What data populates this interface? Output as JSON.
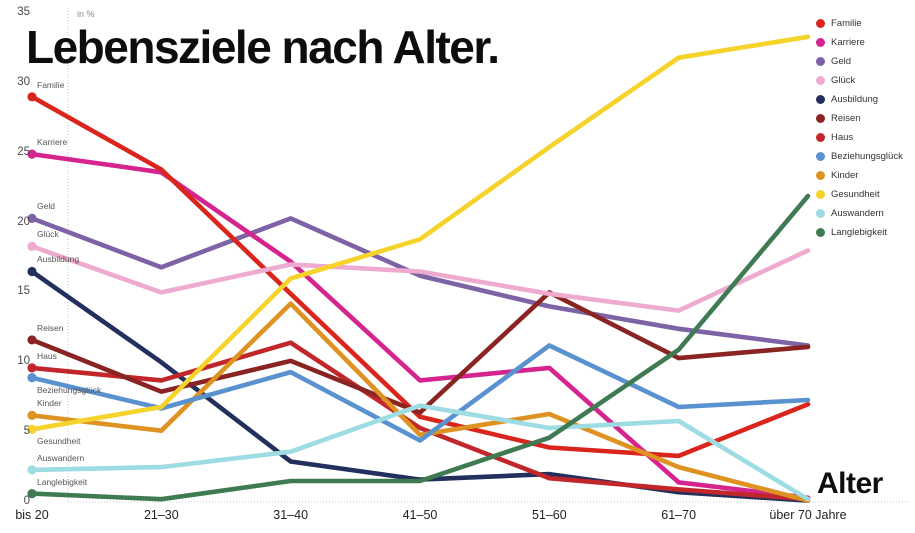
{
  "title": "Lebensziele nach Alter.",
  "y_axis_unit_label": "in %",
  "x_axis_title": "Alter",
  "chart_data": {
    "type": "line",
    "title": "Lebensziele nach Alter.",
    "xlabel": "Alter",
    "ylabel": "in %",
    "ylim": [
      0,
      35
    ],
    "yticks": [
      0,
      5,
      10,
      15,
      20,
      25,
      30,
      35
    ],
    "grid": false,
    "legend_position": "top-right",
    "start_point_dots": true,
    "categories": [
      "bis 20",
      "21–30",
      "31–40",
      "41–50",
      "51–60",
      "61–70",
      "über 70 Jahre"
    ],
    "series": [
      {
        "name": "Familie",
        "color": "#da251d",
        "values": [
          29.0,
          23.8,
          14.9,
          6.1,
          3.9,
          3.3,
          7.0
        ]
      },
      {
        "name": "Karriere",
        "color": "#d6248f",
        "values": [
          24.9,
          23.6,
          17.2,
          8.7,
          9.6,
          1.4,
          0.3
        ]
      },
      {
        "name": "Geld",
        "color": "#7d63a5",
        "values": [
          20.3,
          16.8,
          20.3,
          16.2,
          14.0,
          12.4,
          11.2
        ]
      },
      {
        "name": "Glück",
        "color": "#eeabcf",
        "values": [
          18.3,
          15.0,
          17.0,
          16.5,
          14.9,
          13.7,
          18.0
        ]
      },
      {
        "name": "Ausbildung",
        "color": "#232f5c",
        "values": [
          16.5,
          10.0,
          2.9,
          1.6,
          2.0,
          0.7,
          0.1
        ]
      },
      {
        "name": "Reisen",
        "color": "#8a2422",
        "values": [
          11.6,
          7.9,
          10.1,
          6.4,
          15.0,
          10.3,
          11.1
        ]
      },
      {
        "name": "Haus",
        "color": "#c1272a",
        "values": [
          9.6,
          8.7,
          11.4,
          5.3,
          1.7,
          0.9,
          0.2
        ]
      },
      {
        "name": "Beziehungsglück",
        "color": "#5a92d0",
        "values": [
          8.9,
          6.7,
          9.3,
          4.4,
          11.2,
          6.8,
          7.3
        ]
      },
      {
        "name": "Kinder",
        "color": "#dd9221",
        "values": [
          6.2,
          5.1,
          14.2,
          4.8,
          6.3,
          2.5,
          0.1
        ]
      },
      {
        "name": "Gesundheit",
        "color": "#f6d32b",
        "values": [
          5.2,
          6.8,
          16.0,
          18.8,
          25.4,
          31.8,
          33.3
        ]
      },
      {
        "name": "Auswandern",
        "color": "#9cdce2",
        "values": [
          2.3,
          2.5,
          3.6,
          6.9,
          5.3,
          5.8,
          0.2
        ]
      },
      {
        "name": "Langlebigkeit",
        "color": "#3f7a52",
        "values": [
          0.6,
          0.2,
          1.5,
          1.5,
          4.6,
          10.9,
          21.9
        ]
      }
    ],
    "draw_order": [
      "Ausbildung",
      "Geld",
      "Karriere",
      "Familie",
      "Haus",
      "Reisen",
      "Kinder",
      "Beziehungsglück",
      "Glück",
      "Gesundheit",
      "Auswandern",
      "Langlebigkeit"
    ]
  }
}
